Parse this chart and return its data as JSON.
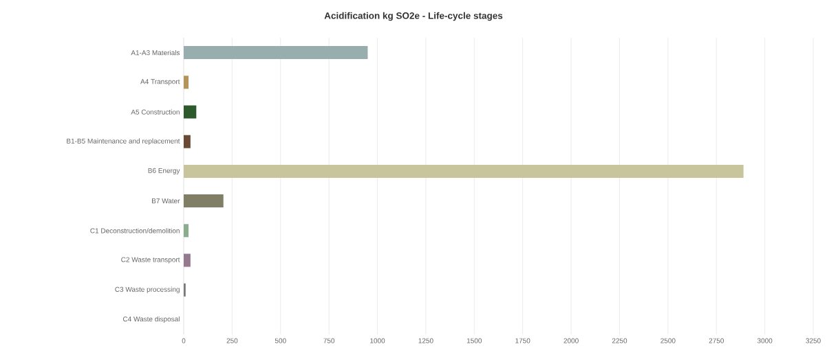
{
  "chart_data": {
    "type": "bar",
    "orientation": "horizontal",
    "title": "Acidification kg SO2e - Life-cycle stages",
    "categories": [
      "A1-A3 Materials",
      "A4 Transport",
      "A5 Construction",
      "B1-B5 Maintenance and replacement",
      "B6 Energy",
      "B7 Water",
      "C1 Deconstruction/demolition",
      "C2 Waste transport",
      "C3 Waste processing",
      "C4 Waste disposal"
    ],
    "values": [
      950,
      25,
      65,
      35,
      2890,
      205,
      25,
      35,
      10,
      0
    ],
    "colors": [
      "#98adad",
      "#b5945a",
      "#2d5a2d",
      "#6b4a35",
      "#c8c59c",
      "#807f66",
      "#8aad8f",
      "#957a8f",
      "#7a7a7a",
      "#999999"
    ],
    "xlim": [
      0,
      3250
    ],
    "xticks": [
      0,
      250,
      500,
      750,
      1000,
      1250,
      1500,
      1750,
      2000,
      2250,
      2500,
      2750,
      3000,
      3250
    ],
    "grid": "x"
  }
}
